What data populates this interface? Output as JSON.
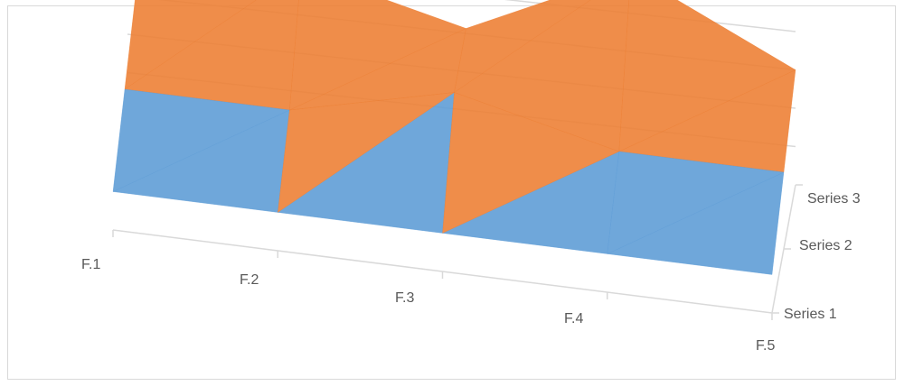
{
  "chart_data": {
    "type": "surface",
    "categories": [
      "F.1",
      "F.2",
      "F.3",
      "F.4",
      "F.5"
    ],
    "series": [
      {
        "name": "Series 1",
        "values": [
          1,
          1,
          1,
          1,
          1
        ]
      },
      {
        "name": "Series 2",
        "values": [
          2,
          2,
          3,
          2,
          2
        ]
      },
      {
        "name": "Series 3",
        "values": [
          3,
          4,
          3,
          5,
          3
        ]
      }
    ],
    "ylim": [
      0,
      5
    ],
    "grid": true,
    "legend": "none",
    "colors": {
      "band_low": "#5b9bd5",
      "band_mid": "#ed7d31",
      "band_high": "#a5a5a5",
      "gridline": "#d9d9d9",
      "axis": "#d9d9d9"
    }
  }
}
